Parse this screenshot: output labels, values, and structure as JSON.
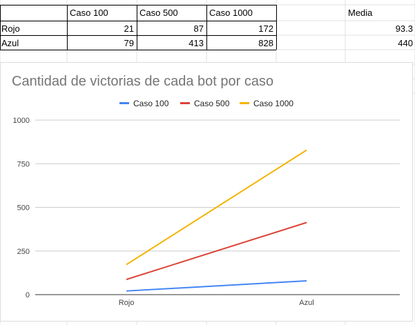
{
  "sheet": {
    "headers": [
      "",
      "Caso 100",
      "Caso 500",
      "Caso 1000",
      "",
      "Media"
    ],
    "rows": [
      {
        "label": "Rojo",
        "values": [
          "21",
          "87",
          "172"
        ],
        "media": "93.3"
      },
      {
        "label": "Azul",
        "values": [
          "79",
          "413",
          "828"
        ],
        "media": "440"
      }
    ]
  },
  "chart_data": {
    "type": "line",
    "title": "Cantidad de victorias de cada bot por caso",
    "categories": [
      "Rojo",
      "Azul"
    ],
    "series": [
      {
        "name": "Caso 100",
        "values": [
          21,
          79
        ],
        "color": "#4285f4"
      },
      {
        "name": "Caso 500",
        "values": [
          87,
          413
        ],
        "color": "#db4437"
      },
      {
        "name": "Caso 1000",
        "values": [
          172,
          828
        ],
        "color": "#f4b400"
      }
    ],
    "ylim": [
      0,
      1000
    ],
    "yticks": [
      0,
      250,
      500,
      750,
      1000
    ],
    "grid": true,
    "legend": "top"
  }
}
